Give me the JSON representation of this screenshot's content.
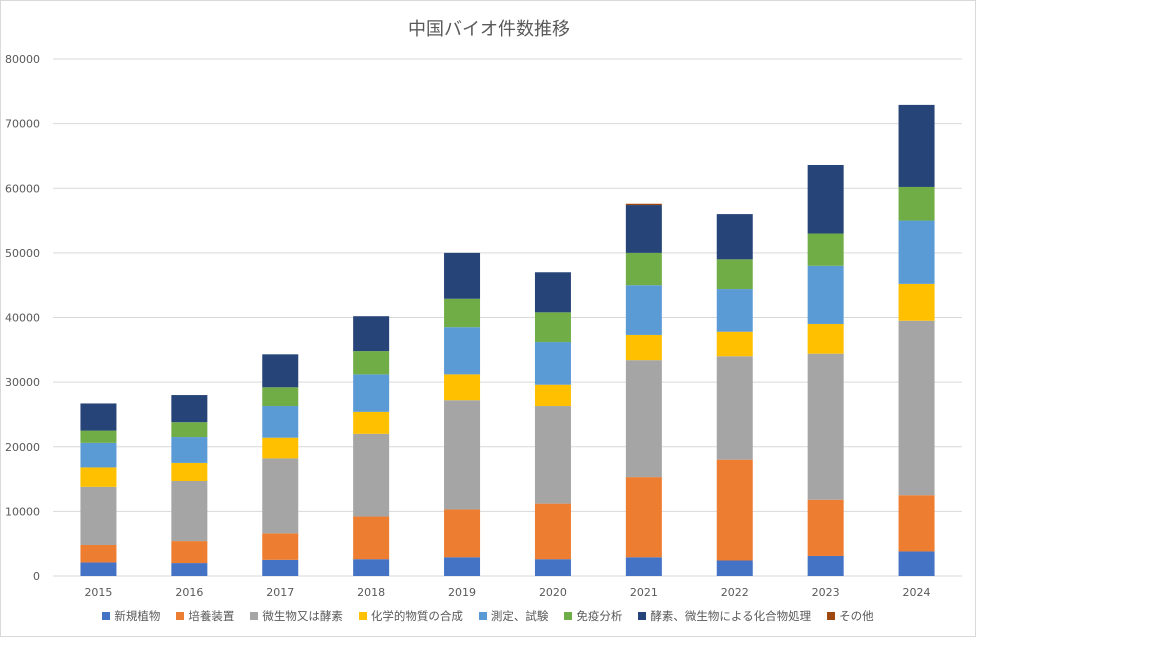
{
  "chart_data": {
    "type": "bar",
    "stacked": true,
    "title": "中国バイオ件数推移",
    "xlabel": "",
    "ylabel": "",
    "ylim": [
      0,
      80000
    ],
    "yticks": [
      0,
      10000,
      20000,
      30000,
      40000,
      50000,
      60000,
      70000,
      80000
    ],
    "grid": true,
    "legend_position": "bottom",
    "categories": [
      "2015",
      "2016",
      "2017",
      "2018",
      "2019",
      "2020",
      "2021",
      "2022",
      "2023",
      "2024"
    ],
    "series": [
      {
        "name": "新規植物",
        "color": "#4472C4",
        "values": [
          2100,
          2000,
          2500,
          2600,
          2900,
          2600,
          2900,
          2400,
          3100,
          3800
        ]
      },
      {
        "name": "培養装置",
        "color": "#ED7D31",
        "values": [
          2700,
          3400,
          4100,
          6600,
          7400,
          8600,
          12400,
          15600,
          8700,
          8700
        ]
      },
      {
        "name": "微生物又は酵素",
        "color": "#A5A5A5",
        "values": [
          9000,
          9300,
          11600,
          12800,
          16900,
          15100,
          18100,
          16000,
          22600,
          27000
        ]
      },
      {
        "name": "化学的物質の合成",
        "color": "#FFC000",
        "values": [
          3000,
          2800,
          3200,
          3400,
          4000,
          3300,
          3900,
          3800,
          4600,
          5700
        ]
      },
      {
        "name": "測定、試験",
        "color": "#5B9BD5",
        "values": [
          3800,
          4000,
          4900,
          5800,
          7300,
          6600,
          7700,
          6600,
          9000,
          9800
        ]
      },
      {
        "name": "免疫分析",
        "color": "#70AD47",
        "values": [
          1900,
          2300,
          2900,
          3600,
          4400,
          4600,
          5000,
          4600,
          5000,
          5200
        ]
      },
      {
        "name": "酵素、微生物による化合物処理",
        "color": "#264478",
        "values": [
          4200,
          4200,
          5100,
          5400,
          7100,
          6200,
          7400,
          7000,
          10600,
          12700
        ]
      },
      {
        "name": "その他",
        "color": "#9E480E",
        "values": [
          0,
          0,
          0,
          0,
          0,
          0,
          200,
          0,
          0,
          0
        ]
      }
    ]
  }
}
